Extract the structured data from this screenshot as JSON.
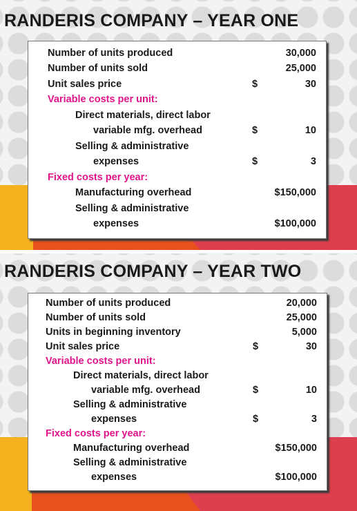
{
  "slides": [
    {
      "title": "RANDERIS COMPANY – YEAR ONE",
      "rows": [
        {
          "label": "Number of units produced",
          "currency": "",
          "amount": "30,000"
        },
        {
          "label": "Number of units sold",
          "currency": "",
          "amount": "25,000"
        },
        {
          "label": "Unit sales price",
          "currency": "$",
          "amount": "30"
        },
        {
          "label": "Variable costs per unit:",
          "currency": "",
          "amount": ""
        },
        {
          "label": "Direct materials, direct labor",
          "currency": "",
          "amount": ""
        },
        {
          "label": "variable mfg. overhead",
          "currency": "$",
          "amount": "10"
        },
        {
          "label": "Selling & administrative",
          "currency": "",
          "amount": ""
        },
        {
          "label": "expenses",
          "currency": "$",
          "amount": "3"
        },
        {
          "label": "Fixed costs per year:",
          "currency": "",
          "amount": ""
        },
        {
          "label": "Manufacturing overhead",
          "currency": "",
          "amount": "$150,000"
        },
        {
          "label": "Selling & administrative",
          "currency": "",
          "amount": ""
        },
        {
          "label": "expenses",
          "currency": "",
          "amount": "$100,000"
        }
      ]
    },
    {
      "title": "RANDERIS COMPANY – YEAR TWO",
      "rows": [
        {
          "label": "Number of units produced",
          "currency": "",
          "amount": "20,000"
        },
        {
          "label": "Number of units sold",
          "currency": "",
          "amount": "25,000"
        },
        {
          "label": "Units in beginning inventory",
          "currency": "",
          "amount": "5,000"
        },
        {
          "label": "Unit sales price",
          "currency": "$",
          "amount": "30"
        },
        {
          "label": "Variable costs per unit:",
          "currency": "",
          "amount": ""
        },
        {
          "label": "Direct materials, direct labor",
          "currency": "",
          "amount": ""
        },
        {
          "label": "variable mfg. overhead",
          "currency": "$",
          "amount": "10"
        },
        {
          "label": "Selling & administrative",
          "currency": "",
          "amount": ""
        },
        {
          "label": "expenses",
          "currency": "$",
          "amount": "3"
        },
        {
          "label": "Fixed costs per year:",
          "currency": "",
          "amount": ""
        },
        {
          "label": "Manufacturing overhead",
          "currency": "",
          "amount": "$150,000"
        },
        {
          "label": "Selling & administrative",
          "currency": "",
          "amount": ""
        },
        {
          "label": "expenses",
          "currency": "",
          "amount": "$100,000"
        }
      ]
    }
  ],
  "colors": {
    "heading_accent": "#e0158c",
    "band_yellow": "#f5b21f",
    "band_orange": "#e8511e",
    "band_red": "#de3f4e"
  }
}
